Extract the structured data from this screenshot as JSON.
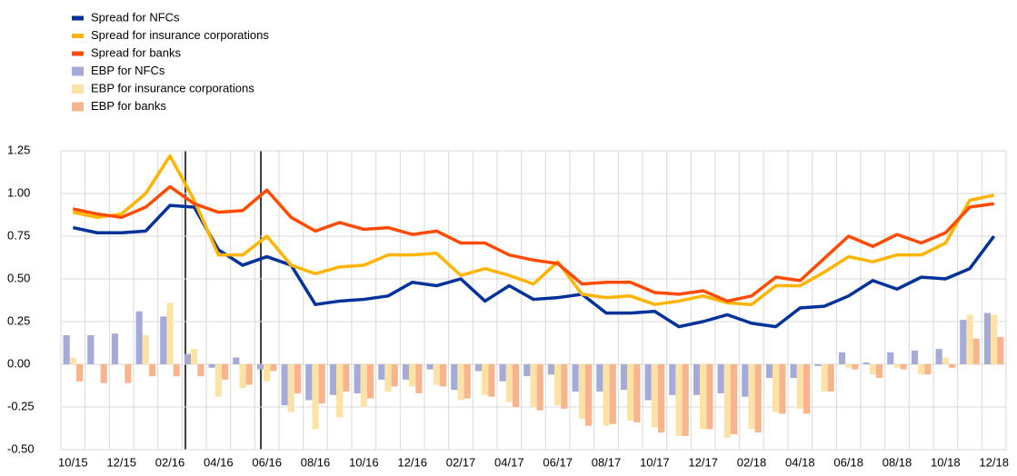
{
  "chart_data": {
    "type": "bar_line",
    "categories": [
      "10/15",
      null,
      "12/15",
      null,
      "02/16",
      null,
      "04/16",
      null,
      "06/16",
      null,
      "08/16",
      null,
      "10/16",
      null,
      "12/16",
      null,
      "02/17",
      null,
      "04/17",
      null,
      "06/17",
      null,
      "08/17",
      null,
      "10/17",
      null,
      "12/17",
      null,
      "02/18",
      null,
      "04/18",
      null,
      "06/18",
      null,
      "08/18",
      null,
      "10/18",
      null,
      "12/18"
    ],
    "series": [
      {
        "name": "Spread for NFCs",
        "kind": "line",
        "color": "#003299",
        "values": [
          0.8,
          0.77,
          0.77,
          0.78,
          0.93,
          0.92,
          0.67,
          0.58,
          0.63,
          0.58,
          0.35,
          0.37,
          0.38,
          0.4,
          0.48,
          0.46,
          0.5,
          0.37,
          0.46,
          0.38,
          0.39,
          0.41,
          0.3,
          0.3,
          0.31,
          0.22,
          0.25,
          0.29,
          0.24,
          0.22,
          0.33,
          0.34,
          0.4,
          0.49,
          0.44,
          0.51,
          0.5,
          0.56,
          0.75
        ]
      },
      {
        "name": "Spread for insurance corporations",
        "kind": "line",
        "color": "#ffb400",
        "values": [
          0.89,
          0.86,
          0.88,
          1.0,
          1.22,
          0.96,
          0.64,
          0.64,
          0.75,
          0.58,
          0.53,
          0.57,
          0.58,
          0.64,
          0.64,
          0.65,
          0.52,
          0.56,
          0.52,
          0.47,
          0.6,
          0.41,
          0.39,
          0.4,
          0.35,
          0.37,
          0.4,
          0.36,
          0.35,
          0.46,
          0.46,
          0.54,
          0.63,
          0.6,
          0.64,
          0.64,
          0.71,
          0.96,
          0.99
        ]
      },
      {
        "name": "Spread for banks",
        "kind": "line",
        "color": "#ff4b00",
        "values": [
          0.91,
          0.88,
          0.86,
          0.92,
          1.04,
          0.94,
          0.89,
          0.9,
          1.02,
          0.86,
          0.78,
          0.83,
          0.79,
          0.8,
          0.76,
          0.78,
          0.71,
          0.71,
          0.64,
          0.61,
          0.59,
          0.47,
          0.48,
          0.48,
          0.42,
          0.41,
          0.43,
          0.37,
          0.4,
          0.51,
          0.49,
          0.62,
          0.75,
          0.69,
          0.76,
          0.71,
          0.77,
          0.92,
          0.94
        ]
      },
      {
        "name": "EBP for NFCs",
        "kind": "bar",
        "color": "#a4abd9",
        "values": [
          0.17,
          0.17,
          0.18,
          0.31,
          0.28,
          0.06,
          -0.02,
          0.04,
          -0.03,
          -0.24,
          -0.21,
          -0.18,
          -0.17,
          -0.09,
          -0.09,
          -0.03,
          -0.15,
          -0.04,
          -0.1,
          -0.07,
          -0.06,
          -0.16,
          -0.16,
          -0.15,
          -0.21,
          -0.18,
          -0.18,
          -0.17,
          -0.19,
          -0.08,
          -0.08,
          -0.01,
          0.07,
          0.01,
          0.07,
          0.08,
          0.09,
          0.26,
          0.3
        ]
      },
      {
        "name": "EBP for insurance corporations",
        "kind": "bar",
        "color": "#fde2a6",
        "values": [
          0.04,
          0,
          0,
          0.17,
          0.36,
          0.09,
          -0.19,
          -0.14,
          -0.1,
          -0.28,
          -0.38,
          -0.31,
          -0.25,
          -0.16,
          -0.13,
          -0.12,
          -0.21,
          -0.18,
          -0.22,
          -0.25,
          -0.24,
          -0.32,
          -0.36,
          -0.33,
          -0.37,
          -0.42,
          -0.38,
          -0.43,
          -0.38,
          -0.28,
          -0.26,
          -0.16,
          -0.02,
          -0.06,
          -0.02,
          -0.06,
          0.04,
          0.29,
          0.29
        ]
      },
      {
        "name": "EBP for banks",
        "kind": "bar",
        "color": "#f8b58d",
        "values": [
          -0.1,
          -0.11,
          -0.11,
          -0.07,
          -0.07,
          -0.07,
          -0.09,
          -0.12,
          -0.04,
          -0.17,
          -0.23,
          -0.16,
          -0.2,
          -0.13,
          -0.17,
          -0.13,
          -0.2,
          -0.19,
          -0.25,
          -0.27,
          -0.26,
          -0.36,
          -0.35,
          -0.34,
          -0.4,
          -0.42,
          -0.38,
          -0.41,
          -0.4,
          -0.29,
          -0.29,
          -0.16,
          -0.03,
          -0.08,
          -0.03,
          -0.06,
          -0.02,
          0.15,
          0.16
        ]
      }
    ],
    "ylim": [
      -0.5,
      1.25
    ],
    "yticks": [
      {
        "value": -0.5,
        "label": "-0.50"
      },
      {
        "value": -0.25,
        "label": "-0.25"
      },
      {
        "value": 0,
        "label": "0.00"
      },
      {
        "value": 0.25,
        "label": "0.25"
      },
      {
        "value": 0.5,
        "label": "0.50"
      },
      {
        "value": 0.75,
        "label": "0.75"
      },
      {
        "value": 1,
        "label": "1.00"
      },
      {
        "value": 1.25,
        "label": "1.25"
      }
    ],
    "grid": true
  }
}
